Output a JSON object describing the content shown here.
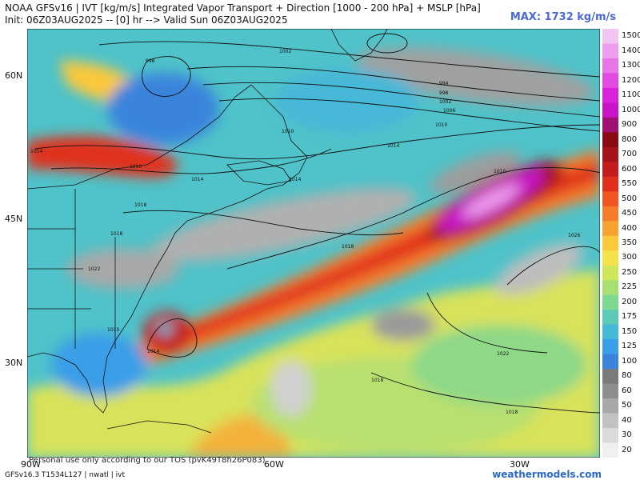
{
  "header": {
    "line1": "NOAA GFSv16 | IVT [kg/m/s] Integrated Vapor Transport + Direction [1000 - 200 hPa] + MSLP [hPa]",
    "line2": "Init: 06Z03AUG2025 -- [0] hr --> Valid Sun 06Z03AUG2025",
    "max": "MAX: 1732 kg/m/s"
  },
  "axes": {
    "lat_labels": [
      "60N",
      "45N",
      "30N"
    ],
    "lon_labels": [
      "90W",
      "60W",
      "30W"
    ]
  },
  "colorbar": {
    "levels": [
      "1500",
      "1400",
      "1300",
      "1200",
      "1100",
      "1000",
      "900",
      "800",
      "700",
      "600",
      "550",
      "500",
      "450",
      "400",
      "350",
      "300",
      "250",
      "225",
      "200",
      "175",
      "150",
      "125",
      "100",
      "80",
      "60",
      "50",
      "40",
      "30",
      "20"
    ],
    "colors": [
      "#f2c4f2",
      "#ee9eee",
      "#e874e8",
      "#e24ae2",
      "#da22da",
      "#c813c8",
      "#a01070",
      "#8a0a14",
      "#a4141a",
      "#c41c1c",
      "#e0301c",
      "#f05522",
      "#f57c2a",
      "#f8a232",
      "#fbc83a",
      "#f4e24a",
      "#cfe65a",
      "#a6e070",
      "#7ed890",
      "#5ccab4",
      "#46b8d8",
      "#3a9ee8",
      "#3a84dc",
      "#7a7a7a",
      "#8e8e8e",
      "#a8a8a8",
      "#c2c2c2",
      "#dadada",
      "#efefef"
    ]
  },
  "pressure_labels": [
    "998",
    "1002",
    "994",
    "998",
    "1002",
    "1006",
    "1010",
    "1010",
    "1014",
    "1014",
    "1010",
    "1018",
    "1014",
    "1014",
    "1018",
    "1022",
    "1010",
    "1014",
    "1026",
    "1018",
    "1010",
    "1022",
    "1018",
    "1018"
  ],
  "footer": {
    "left": "GFSv16.3 T1534L127 | nwatl | ivt",
    "watermark": "weathermodels.com",
    "tos": "Personal use only according to our TOS (pvK49T8h26P083)"
  }
}
